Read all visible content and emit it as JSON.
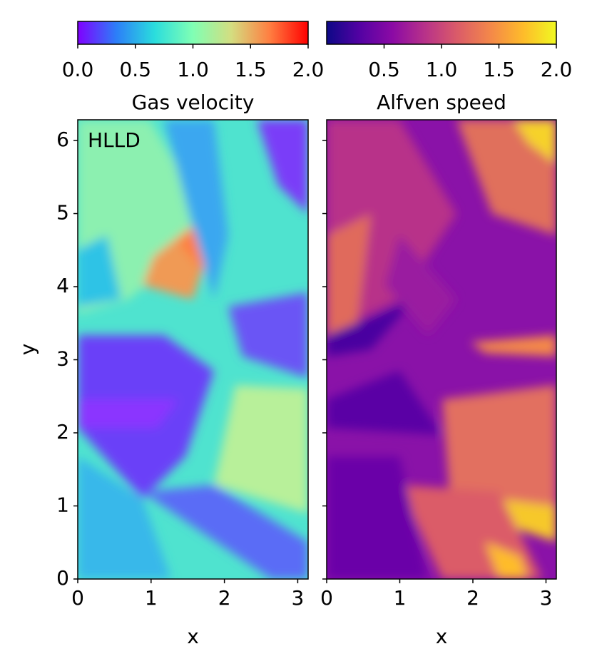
{
  "chart_data": [
    {
      "type": "heatmap",
      "title": "Gas velocity",
      "annotation": "HLLD",
      "xlabel": "x",
      "ylabel": "y",
      "xlim": [
        0,
        3.1416
      ],
      "ylim": [
        0,
        6.2832
      ],
      "xticks": [
        0,
        1,
        2,
        3
      ],
      "yticks": [
        0,
        1,
        2,
        3,
        4,
        5,
        6
      ],
      "clim": [
        0,
        2
      ],
      "cticks": [
        {
          "value": 0,
          "label": "0.0"
        },
        0.5,
        {
          "value": 1,
          "label": "1.0"
        },
        1.5,
        {
          "value": 2,
          "label": "2.0"
        }
      ],
      "colormap": [
        "#8000ff",
        "#2c7ef8",
        "#2adddd",
        "#80ffb4",
        "#d4dd80",
        "#ff7e41",
        "#ff0000"
      ]
    },
    {
      "type": "heatmap",
      "title": "Alfven speed",
      "xlabel": "x",
      "xlim": [
        0,
        3.1416
      ],
      "ylim": [
        0,
        6.2832
      ],
      "xticks": [
        0,
        1,
        2,
        3
      ],
      "yticks": [
        0,
        1,
        2,
        3,
        4,
        5,
        6
      ],
      "yticklabels": false,
      "clim": [
        0,
        2
      ],
      "cticks": [
        0.5,
        {
          "value": 1,
          "label": "1.0"
        },
        1.5,
        {
          "value": 2,
          "label": "2.0"
        }
      ],
      "colormap": [
        "#0d0887",
        "#5302a3",
        "#8b0aa5",
        "#b83289",
        "#db5c68",
        "#f48849",
        "#febc2a",
        "#f0f921"
      ]
    }
  ]
}
